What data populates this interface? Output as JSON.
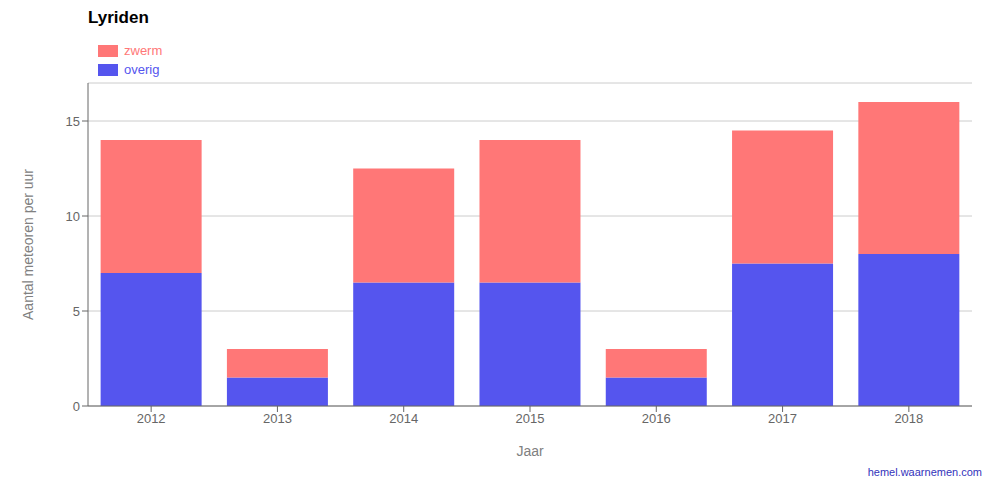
{
  "chart_data": {
    "type": "bar",
    "stacked": true,
    "title": "Lyriden",
    "x_label": "Jaar",
    "y_label": "Aantal meteoren per uur",
    "categories": [
      "2012",
      "2013",
      "2014",
      "2015",
      "2016",
      "2017",
      "2018"
    ],
    "series": [
      {
        "name": "overig",
        "color": "#5555ee",
        "values": [
          7.0,
          1.5,
          6.5,
          6.5,
          1.5,
          7.5,
          8.0
        ]
      },
      {
        "name": "zwerm",
        "color": "#ff7777",
        "values": [
          7.0,
          1.5,
          6.0,
          7.5,
          1.5,
          7.0,
          8.0
        ]
      }
    ],
    "ylim": [
      0,
      17
    ],
    "yticks": [
      0,
      5,
      10,
      15
    ],
    "grid": true,
    "legend": "upper left",
    "annotations": [
      "hemel.waarnemen.com"
    ]
  }
}
